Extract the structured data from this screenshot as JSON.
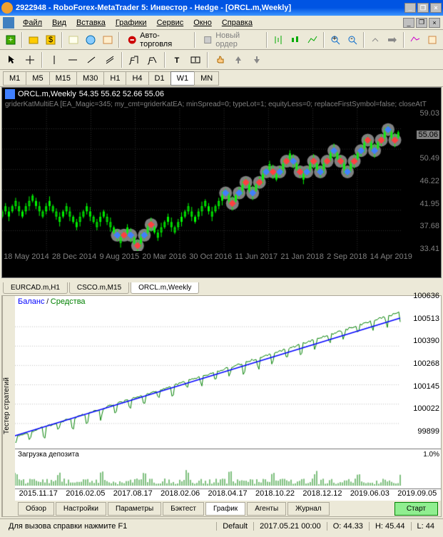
{
  "window": {
    "title": "2922948 - RoboForex-MetaTrader 5: Инвестор - Hedge - [ORCL.m,Weekly]"
  },
  "menu": {
    "file": "Файл",
    "view": "Вид",
    "insert": "Вставка",
    "charts": "Графики",
    "service": "Сервис",
    "window": "Окно",
    "help": "Справка"
  },
  "toolbar": {
    "autotrade": "Авто-торговля",
    "neworder": "Новый ордер"
  },
  "timeframes": {
    "items": [
      "M1",
      "M5",
      "M15",
      "M30",
      "H1",
      "H4",
      "D1",
      "W1",
      "MN"
    ],
    "active": "W1"
  },
  "chart": {
    "symbol": "ORCL.m,Weekly",
    "ohlc": "54.35 55.62 52.66 55.06",
    "ea_info": "griderKatMultiEA [EA_Magic=345; my_cmt=griderKatEA; minSpread=0; typeLot=1; equityLess=0; replaceFirstSymbol=false; closeAtT",
    "y_ticks": [
      59.03,
      55.06,
      50.49,
      46.22,
      41.95,
      37.68,
      33.41
    ],
    "y_highlight": 55.06,
    "x_ticks": [
      "18 May 2014",
      "28 Dec 2014",
      "9 Aug 2015",
      "20 Mar 2016",
      "30 Oct 2016",
      "11 Jun 2017",
      "21 Jan 2018",
      "2 Sep 2018",
      "14 Apr 2019"
    ],
    "colors": {
      "bg": "#000000",
      "grid": "#303030",
      "candle_up": "#00ff00",
      "candle_dn": "#00ff00",
      "marker_bg": "#808080",
      "marker_blue": "#4080ff",
      "marker_red": "#ff4040",
      "axis_text": "#808080"
    },
    "price_series": [
      40,
      41,
      40,
      41,
      42,
      41,
      40,
      41,
      42,
      43,
      42,
      41,
      40,
      41,
      42,
      41,
      40,
      39,
      40,
      41,
      40,
      39,
      38,
      39,
      40,
      41,
      40,
      39,
      38,
      39,
      40,
      39,
      38,
      37,
      36,
      35,
      36,
      37,
      36,
      35,
      34,
      35,
      36,
      37,
      38,
      37,
      36,
      37,
      38,
      39,
      38,
      37,
      38,
      39,
      40,
      41,
      40,
      39,
      40,
      41,
      42,
      41,
      40,
      41,
      42,
      43,
      44,
      43,
      42,
      43,
      44,
      45,
      46,
      45,
      44,
      45,
      46,
      47,
      48,
      49,
      48,
      47,
      48,
      49,
      50,
      51,
      50,
      49,
      48,
      47,
      48,
      49,
      50,
      49,
      48,
      49,
      50,
      51,
      52,
      51,
      50,
      49,
      48,
      49,
      50,
      51,
      52,
      53,
      54,
      53,
      52,
      53,
      54,
      55,
      56,
      55,
      54,
      55
    ],
    "signals": [
      {
        "i": 34,
        "t": "b"
      },
      {
        "i": 36,
        "t": "s"
      },
      {
        "i": 38,
        "t": "b"
      },
      {
        "i": 40,
        "t": "s"
      },
      {
        "i": 42,
        "t": "b"
      },
      {
        "i": 44,
        "t": "s"
      },
      {
        "i": 66,
        "t": "b"
      },
      {
        "i": 68,
        "t": "s"
      },
      {
        "i": 70,
        "t": "b"
      },
      {
        "i": 72,
        "t": "s"
      },
      {
        "i": 74,
        "t": "b"
      },
      {
        "i": 76,
        "t": "s"
      },
      {
        "i": 78,
        "t": "b"
      },
      {
        "i": 80,
        "t": "s"
      },
      {
        "i": 82,
        "t": "b"
      },
      {
        "i": 84,
        "t": "s"
      },
      {
        "i": 86,
        "t": "b"
      },
      {
        "i": 88,
        "t": "s"
      },
      {
        "i": 90,
        "t": "b"
      },
      {
        "i": 92,
        "t": "s"
      },
      {
        "i": 94,
        "t": "b"
      },
      {
        "i": 96,
        "t": "s"
      },
      {
        "i": 98,
        "t": "b"
      },
      {
        "i": 100,
        "t": "s"
      },
      {
        "i": 102,
        "t": "b"
      },
      {
        "i": 104,
        "t": "s"
      },
      {
        "i": 106,
        "t": "b"
      },
      {
        "i": 108,
        "t": "s"
      },
      {
        "i": 110,
        "t": "b"
      },
      {
        "i": 112,
        "t": "s"
      },
      {
        "i": 114,
        "t": "b"
      },
      {
        "i": 116,
        "t": "s"
      }
    ]
  },
  "chart_tabs": {
    "items": [
      "EURCAD.m,H1",
      "CSCO.m,M15",
      "ORCL.m,Weekly"
    ],
    "active": "ORCL.m,Weekly"
  },
  "balance": {
    "label1": "Баланс",
    "label2": "Средства",
    "y_ticks": [
      100636,
      100513,
      100390,
      100268,
      100145,
      100022,
      99899
    ],
    "x_ticks": [
      "2015.11.17",
      "2016.02.05",
      "2017.08.17",
      "2018.02.06",
      "2018.04.17",
      "2018.10.22",
      "2018.12.12",
      "2019.06.03",
      "2019.09.05"
    ],
    "colors": {
      "balance": "#0000ff",
      "equity": "#008000",
      "grid": "#c0c0c0"
    }
  },
  "deposit": {
    "label": "Загрузка депозита",
    "max_pct": "1.0%"
  },
  "bottom_tabs": {
    "items": [
      "Обзор",
      "Настройки",
      "Параметры",
      "Бэктест",
      "График",
      "Агенты",
      "Журнал"
    ],
    "active": "График",
    "start": "Старт"
  },
  "sidebar_tab": "Тестер стратегий",
  "status": {
    "help": "Для вызова справки нажмите F1",
    "profile": "Default",
    "datetime": "2017.05.21 00:00",
    "o": "O: 44.33",
    "h": "H: 45.44",
    "l": "L: 44"
  }
}
